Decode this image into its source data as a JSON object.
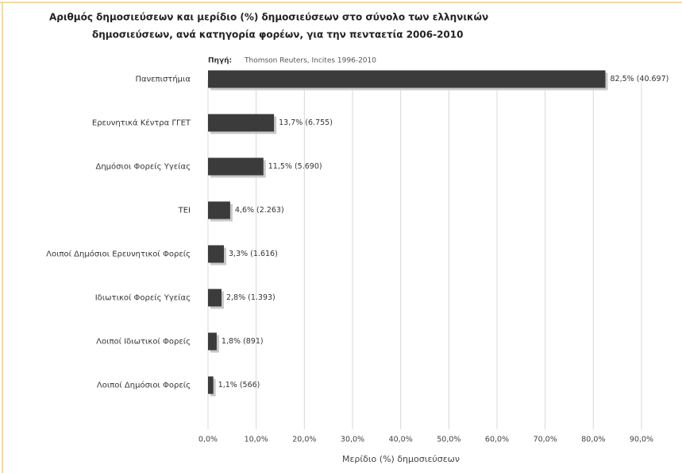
{
  "chart_data": {
    "type": "barh",
    "title": [
      "Αριθμός δημοσιεύσεων και μερίδιο (%) δημοσιεύσεων στο σύνολο των ελληνικών",
      "δημοσιεύσεων, ανά κατηγορία φορέων, για την πενταετία 2006-2010"
    ],
    "source_label": "Πηγή:",
    "source": "Thomson Reuters, Incites 1996-2010",
    "categories": [
      "Πανεπιστήμια",
      "Ερευνητικά Κέντρα ΓΓΕΤ",
      "Δημόσιοι Φορείς Υγείας",
      "ΤΕΙ",
      "Λοιποί Δημόσιοι Ερευνητικοί Φορείς",
      "Ιδιωτικοί Φορείς Υγείας",
      "Λοιποί Ιδιωτικοί Φορείς",
      "Λοιποί Δημόσιοι Φορείς"
    ],
    "values": [
      82.5,
      13.7,
      11.5,
      4.6,
      3.3,
      2.8,
      1.8,
      1.1
    ],
    "value_labels": [
      "82,5% (40.697)",
      "13,7% (6.755)",
      "11,5% (5.690)",
      "4,6% (2.263)",
      "3,3% (1.616)",
      "2,8% (1.393)",
      "1,8% (891)",
      "1,1% (566)"
    ],
    "color": "#3b3b3b",
    "xlabel": "Μερίδιο (%) δημοσιεύσεων",
    "xlim": [
      0,
      90
    ],
    "xticks": [
      {
        "value": 0,
        "label": "0,0%"
      },
      {
        "value": 10,
        "label": "10,0%"
      },
      {
        "value": 20,
        "label": "20,0%"
      },
      {
        "value": 30,
        "label": "30,0%"
      },
      {
        "value": 40,
        "label": "40,0%"
      },
      {
        "value": 50,
        "label": "50,0%"
      },
      {
        "value": 60,
        "label": "60,0%"
      },
      {
        "value": 70,
        "label": "70,0%"
      },
      {
        "value": 80,
        "label": "80,0%"
      },
      {
        "value": 90,
        "label": "90,0%"
      }
    ],
    "grid": true
  }
}
